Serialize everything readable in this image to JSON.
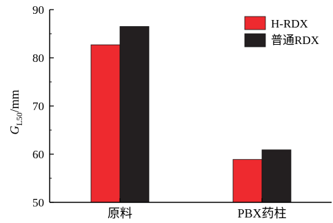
{
  "chart_data": {
    "type": "bar",
    "categories": [
      "原料",
      "PBX药柱"
    ],
    "series": [
      {
        "name": "H-RDX",
        "color": "#ee2a2f",
        "values": [
          82.7,
          58.9
        ]
      },
      {
        "name": "普通RDX",
        "color": "#231f20",
        "values": [
          86.5,
          60.9
        ]
      }
    ],
    "ylabel_main": "G",
    "ylabel_sub": "L50",
    "ylabel_unit": "/mm",
    "xlabel": "",
    "ylim": [
      50,
      90
    ],
    "yticks": [
      50,
      60,
      70,
      80,
      90
    ],
    "legend_position": "top-right",
    "grid": false
  }
}
